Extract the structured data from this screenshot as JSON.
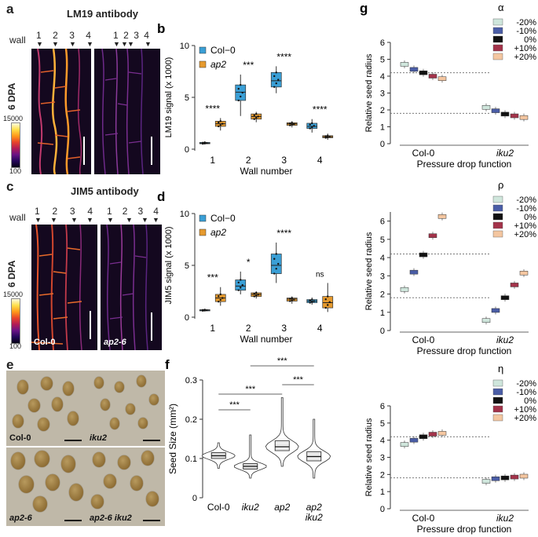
{
  "panels": {
    "a": {
      "letter": "a",
      "title": "LM19 antibody",
      "wall_label": "wall",
      "walls_left": [
        "1",
        "2",
        "3",
        "4"
      ],
      "walls_right": [
        "1",
        "2",
        "3",
        "4"
      ],
      "dpa": "6 DPA",
      "cbar_max": "15000",
      "cbar_min": "100"
    },
    "c": {
      "letter": "c",
      "title": "JIM5 antibody",
      "wall_label": "wall",
      "walls_left": [
        "1",
        "2",
        "3",
        "4"
      ],
      "walls_right": [
        "1",
        "2",
        "3",
        "4"
      ],
      "dpa": "6 DPA",
      "cbar_max": "15000",
      "cbar_min": "100",
      "geno_left": "Col-0",
      "geno_right": "ap2-6"
    },
    "e": {
      "letter": "e",
      "labels": [
        "Col-0",
        "iku2",
        "ap2-6",
        "ap2-6 iku2"
      ]
    }
  },
  "colors": {
    "col0": "#3a9fd6",
    "ap2": "#e69a2e",
    "green": "#cfe6dc",
    "blue": "#4a5da6",
    "black": "#111111",
    "red": "#a3334a",
    "peach": "#f4c6a0"
  },
  "chart_data": [
    {
      "id": "b",
      "letter": "b",
      "type": "box",
      "ylabel": "LM19 signal (x 1000)",
      "xlabel": "Wall number",
      "categories": [
        "1",
        "2",
        "3",
        "4"
      ],
      "ylim": [
        0,
        10
      ],
      "yticks": [
        0,
        5,
        10
      ],
      "legend": [
        {
          "name": "Col−0",
          "italic": false
        },
        {
          "name": "ap2",
          "italic": true
        }
      ],
      "series": [
        {
          "name": "Col-0",
          "boxes": [
            [
              0.45,
              0.52,
              0.58,
              0.65,
              0.75
            ],
            [
              3.2,
              4.7,
              5.5,
              6.2,
              7.2
            ],
            [
              5.4,
              6.0,
              6.6,
              7.4,
              8.0
            ],
            [
              1.6,
              2.0,
              2.2,
              2.5,
              2.9
            ]
          ]
        },
        {
          "name": "ap2",
          "boxes": [
            [
              1.8,
              2.2,
              2.45,
              2.7,
              3.0
            ],
            [
              2.6,
              2.9,
              3.15,
              3.4,
              3.6
            ],
            [
              2.1,
              2.3,
              2.45,
              2.55,
              2.7
            ],
            [
              0.9,
              1.1,
              1.2,
              1.3,
              1.5
            ]
          ]
        }
      ],
      "significance": [
        "****",
        "***",
        "****",
        "****"
      ]
    },
    {
      "id": "d",
      "letter": "d",
      "type": "box",
      "ylabel": "JIM5 signal (x 1000)",
      "xlabel": "Wall number",
      "categories": [
        "1",
        "2",
        "3",
        "4"
      ],
      "ylim": [
        0,
        10
      ],
      "yticks": [
        0,
        5,
        10
      ],
      "legend": [
        {
          "name": "Col−0",
          "italic": false
        },
        {
          "name": "ap2",
          "italic": true
        }
      ],
      "series": [
        {
          "name": "Col-0",
          "boxes": [
            [
              0.55,
              0.62,
              0.68,
              0.72,
              0.8
            ],
            [
              2.2,
              2.6,
              3.0,
              3.6,
              4.4
            ],
            [
              3.3,
              4.2,
              5.0,
              6.1,
              7.2
            ],
            [
              1.2,
              1.4,
              1.55,
              1.7,
              1.9
            ]
          ]
        },
        {
          "name": "ap2",
          "boxes": [
            [
              1.1,
              1.5,
              1.85,
              2.2,
              2.9
            ],
            [
              1.8,
              2.0,
              2.2,
              2.35,
              2.5
            ],
            [
              1.3,
              1.55,
              1.75,
              1.85,
              2.0
            ],
            [
              0.5,
              0.9,
              1.4,
              2.0,
              3.3
            ]
          ]
        }
      ],
      "significance": [
        "***",
        "*",
        "****",
        "ns"
      ]
    },
    {
      "id": "f",
      "letter": "f",
      "type": "violin",
      "ylabel": "Seed Size (mm²)",
      "ylim": [
        0,
        0.3
      ],
      "yticks": [
        "0",
        "0.1",
        "0.2",
        "0.3"
      ],
      "categories": [
        {
          "lines": [
            "Col-0"
          ],
          "italic": false
        },
        {
          "lines": [
            "iku2"
          ],
          "italic": true
        },
        {
          "lines": [
            "ap2"
          ],
          "italic": true
        },
        {
          "lines": [
            "ap2",
            "iku2"
          ],
          "italic": true
        }
      ],
      "box_stats": [
        [
          0.075,
          0.1,
          0.107,
          0.115,
          0.14
        ],
        [
          0.05,
          0.073,
          0.08,
          0.087,
          0.16
        ],
        [
          0.08,
          0.12,
          0.13,
          0.145,
          0.255
        ],
        [
          0.05,
          0.094,
          0.105,
          0.117,
          0.2
        ]
      ],
      "comparisons": [
        {
          "from": 0,
          "to": 1,
          "label": "***"
        },
        {
          "from": 0,
          "to": 2,
          "label": "***"
        },
        {
          "from": 1,
          "to": 3,
          "label": "***"
        },
        {
          "from": 2,
          "to": 3,
          "label": "***"
        }
      ]
    },
    {
      "id": "g-alpha",
      "letter": "g",
      "type": "box",
      "param": "α",
      "ylabel": "Relative seed radius",
      "xlabel": "Pressure drop function",
      "categories": [
        {
          "name": "Col-0",
          "italic": false
        },
        {
          "name": "iku2",
          "italic": true
        }
      ],
      "ylim": [
        0,
        6
      ],
      "yticks": [
        0,
        1,
        2,
        3,
        4,
        5,
        6
      ],
      "reference_lines": [
        4.2,
        1.8
      ],
      "legend": [
        "-20%",
        "-10%",
        "0%",
        "+10%",
        "+20%"
      ],
      "groups": [
        [
          4.7,
          4.4,
          4.2,
          4.0,
          3.85
        ],
        [
          2.15,
          1.95,
          1.75,
          1.65,
          1.55
        ]
      ]
    },
    {
      "id": "g-rho",
      "letter": "",
      "type": "box",
      "param": "ρ",
      "ylabel": "Relative seed radius",
      "xlabel": "Pressure drop function",
      "categories": [
        {
          "name": "Col-0",
          "italic": false
        },
        {
          "name": "iku2",
          "italic": true
        }
      ],
      "ylim": [
        0,
        6.5
      ],
      "yticks": [
        0,
        1,
        2,
        3,
        4,
        5,
        6
      ],
      "reference_lines": [
        4.2,
        1.8
      ],
      "legend": [
        "-20%",
        "-10%",
        "0%",
        "+10%",
        "+20%"
      ],
      "groups": [
        [
          2.25,
          3.2,
          4.15,
          5.2,
          6.25
        ],
        [
          0.55,
          1.1,
          1.8,
          2.5,
          3.15
        ]
      ]
    },
    {
      "id": "g-eta",
      "letter": "",
      "type": "box",
      "param": "η",
      "ylabel": "Relative seed radius",
      "xlabel": "Pressure drop function",
      "categories": [
        {
          "name": "Col-0",
          "italic": false
        },
        {
          "name": "iku2",
          "italic": true
        }
      ],
      "ylim": [
        0,
        6
      ],
      "yticks": [
        0,
        1,
        2,
        3,
        4,
        5,
        6
      ],
      "reference_lines": [
        4.2,
        1.8
      ],
      "legend": [
        "-20%",
        "-10%",
        "0%",
        "+10%",
        "+20%"
      ],
      "groups": [
        [
          3.75,
          4.0,
          4.2,
          4.35,
          4.4
        ],
        [
          1.6,
          1.75,
          1.8,
          1.85,
          1.9
        ]
      ]
    }
  ]
}
